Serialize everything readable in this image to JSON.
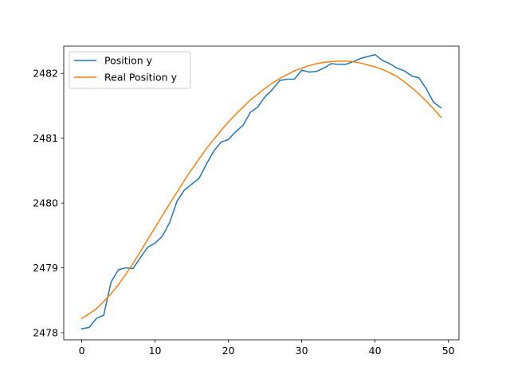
{
  "chart_data": {
    "type": "line",
    "title": "",
    "xlabel": "",
    "ylabel": "",
    "xlim": [
      -2.45,
      51.45
    ],
    "ylim": [
      2477.89,
      2482.42
    ],
    "xticks": [
      0,
      10,
      20,
      30,
      40,
      50
    ],
    "yticks": [
      2478,
      2479,
      2480,
      2481,
      2482
    ],
    "grid": false,
    "legend": {
      "placement": "top-left"
    },
    "series": [
      {
        "name": "Position y",
        "color": "#1f77b4",
        "x": [
          0,
          1,
          2,
          3,
          4,
          5,
          6,
          7,
          8,
          9,
          10,
          11,
          12,
          13,
          14,
          15,
          16,
          17,
          18,
          19,
          20,
          21,
          22,
          23,
          24,
          25,
          26,
          27,
          28,
          29,
          30,
          31,
          32,
          33,
          34,
          35,
          36,
          37,
          38,
          39,
          40,
          41,
          42,
          43,
          44,
          45,
          46,
          47,
          48,
          49
        ],
        "y": [
          2478.06,
          2478.08,
          2478.22,
          2478.27,
          2478.78,
          2478.97,
          2479.0,
          2478.99,
          2479.16,
          2479.32,
          2479.38,
          2479.49,
          2479.7,
          2480.03,
          2480.2,
          2480.29,
          2480.38,
          2480.6,
          2480.8,
          2480.94,
          2480.98,
          2481.1,
          2481.2,
          2481.4,
          2481.48,
          2481.64,
          2481.75,
          2481.89,
          2481.91,
          2481.91,
          2482.05,
          2482.02,
          2482.03,
          2482.08,
          2482.15,
          2482.14,
          2482.14,
          2482.18,
          2482.23,
          2482.26,
          2482.29,
          2482.2,
          2482.15,
          2482.08,
          2482.04,
          2481.96,
          2481.93,
          2481.76,
          2481.55,
          2481.47
        ]
      },
      {
        "name": "Real Position y",
        "color": "#ff7f0e",
        "x": [
          0,
          1,
          2,
          3,
          4,
          5,
          6,
          7,
          8,
          9,
          10,
          11,
          12,
          13,
          14,
          15,
          16,
          17,
          18,
          19,
          20,
          21,
          22,
          23,
          24,
          25,
          26,
          27,
          28,
          29,
          30,
          31,
          32,
          33,
          34,
          35,
          36,
          37,
          38,
          39,
          40,
          41,
          42,
          43,
          44,
          45,
          46,
          47,
          48,
          49
        ],
        "y": [
          2478.22,
          2478.29,
          2478.37,
          2478.48,
          2478.6,
          2478.74,
          2478.9,
          2479.07,
          2479.25,
          2479.44,
          2479.62,
          2479.81,
          2479.99,
          2480.17,
          2480.35,
          2480.52,
          2480.68,
          2480.84,
          2480.98,
          2481.12,
          2481.25,
          2481.37,
          2481.48,
          2481.59,
          2481.68,
          2481.77,
          2481.85,
          2481.92,
          2481.98,
          2482.04,
          2482.08,
          2482.12,
          2482.15,
          2482.17,
          2482.18,
          2482.19,
          2482.19,
          2482.18,
          2482.16,
          2482.13,
          2482.1,
          2482.06,
          2482.01,
          2481.95,
          2481.87,
          2481.78,
          2481.68,
          2481.57,
          2481.45,
          2481.32
        ]
      }
    ]
  }
}
